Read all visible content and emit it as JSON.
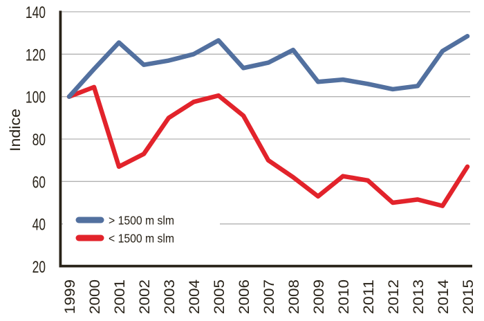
{
  "chart_data": {
    "type": "line",
    "title": "",
    "ylabel": "Indice",
    "xlabel": "",
    "ylim": [
      20,
      140
    ],
    "yticks": [
      140,
      120,
      100,
      80,
      60,
      40,
      20
    ],
    "grid": "horizontal-gridlines",
    "legend_position": "inside-lower-left",
    "x": [
      1999,
      2000,
      2001,
      2002,
      2003,
      2004,
      2005,
      2006,
      2007,
      2008,
      2009,
      2010,
      2011,
      2012,
      2013,
      2014,
      2015
    ],
    "series": [
      {
        "name": "> 1500 m slm",
        "color": "#52709f",
        "values": [
          100,
          113,
          125.5,
          115,
          117,
          120,
          126.5,
          113.5,
          116,
          122,
          107,
          108,
          106,
          103.5,
          105,
          121.5,
          128.5
        ]
      },
      {
        "name": "< 1500 m slm",
        "color": "#e2232b",
        "values": [
          100,
          104.5,
          67,
          73,
          90,
          97.5,
          100.5,
          91,
          70,
          62,
          53,
          62.5,
          60.5,
          50,
          51.5,
          48.5,
          67
        ]
      }
    ],
    "colors": {
      "axis": "#282218",
      "text": "#282218",
      "gridline": "#b2b2b2",
      "background": "#ffffff"
    }
  }
}
